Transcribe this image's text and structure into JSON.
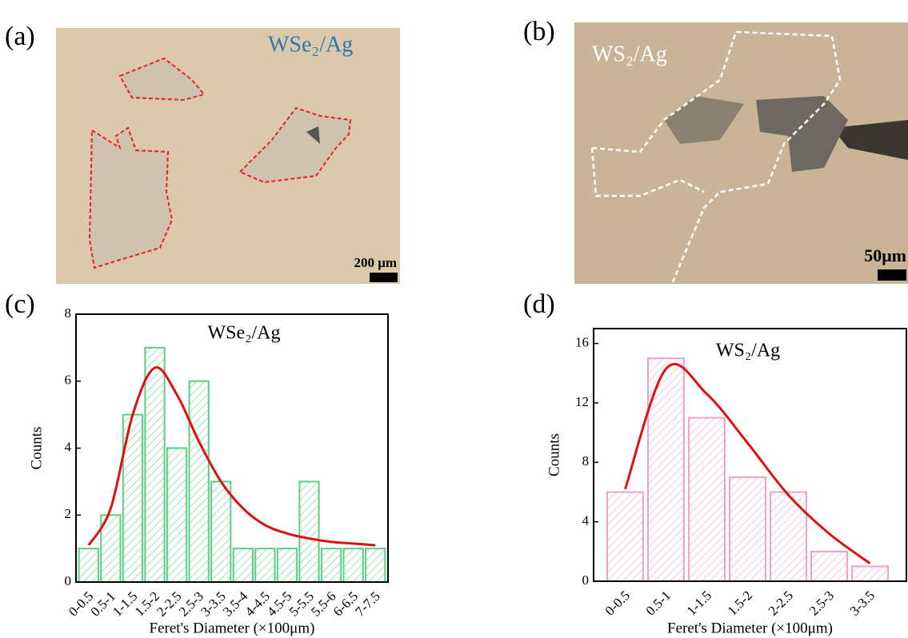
{
  "panels": [
    {
      "label": "(a)",
      "title": "WSe₂/Ag",
      "scale": "200 μm"
    },
    {
      "label": "(b)",
      "title": "WS₂/Ag",
      "scale": "50μm"
    },
    {
      "label": "(c)"
    },
    {
      "label": "(d)"
    }
  ],
  "chart_data": [
    {
      "type": "bar",
      "title": "WSe₂/Ag",
      "x_label": "Feret's Diameter (×100μm)",
      "y_label": "Counts",
      "categories": [
        "0-0.5",
        "0.5-1",
        "1-1.5",
        "1.5-2",
        "2-2.5",
        "2.5-3",
        "3-3.5",
        "3.5-4",
        "4-4.5",
        "4.5-5",
        "5-5.5",
        "5.5-6",
        "6-6.5",
        "7-7.5"
      ],
      "values": [
        1,
        2,
        5,
        7,
        4,
        6,
        3,
        1,
        1,
        1,
        3,
        1,
        1,
        1
      ],
      "color": "#5ccf84",
      "fit": {
        "color": "#e01010",
        "values": [
          1.1,
          2.2,
          5.0,
          6.4,
          5.6,
          4.2,
          3.0,
          2.2,
          1.7,
          1.45,
          1.3,
          1.2,
          1.15,
          1.1
        ]
      },
      "ylim": [
        0,
        8
      ],
      "yticks": [
        0,
        2,
        4,
        6,
        8
      ]
    },
    {
      "type": "bar",
      "title": "WS₂/Ag",
      "x_label": "Feret's Diameter (×100μm)",
      "y_label": "Counts",
      "categories": [
        "0-0.5",
        "0.5-1",
        "1-1.5",
        "1.5-2",
        "2-2.5",
        "2.5-3",
        "3-3.5"
      ],
      "values": [
        6,
        15,
        11,
        7,
        6,
        2,
        1
      ],
      "color": "#f0a0c8",
      "fit": {
        "color": "#e01010",
        "values": [
          6.2,
          14.3,
          12.6,
          9.3,
          5.8,
          3.2,
          1.2
        ]
      },
      "ylim": [
        0,
        17
      ],
      "yticks": [
        0,
        4,
        8,
        12,
        16
      ]
    }
  ]
}
